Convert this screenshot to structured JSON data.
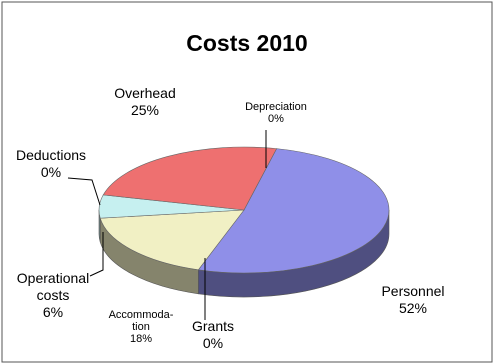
{
  "chart_data": {
    "type": "pie",
    "title": "Costs 2010",
    "three_d": true,
    "slices": [
      {
        "label": "Personnel",
        "value": 52,
        "display": "52%",
        "color": "#8f8fe8"
      },
      {
        "label": "Grants",
        "value": 0,
        "display": "0%",
        "color": "#c8c8f0"
      },
      {
        "label": "Accommoda-|tion",
        "value": 18,
        "display": "18%",
        "color": "#f1f0c4"
      },
      {
        "label": "Operational|costs",
        "value": 6,
        "display": "6%",
        "color": "#c6f0f0"
      },
      {
        "label": "Deductions",
        "value": 0,
        "display": "0%",
        "color": "#e8c8c8"
      },
      {
        "label": "Overhead",
        "value": 25,
        "display": "25%",
        "color": "#ee7070"
      },
      {
        "label": "Depreciation",
        "value": 0,
        "display": "0%",
        "color": "#f4e0e0"
      }
    ]
  }
}
